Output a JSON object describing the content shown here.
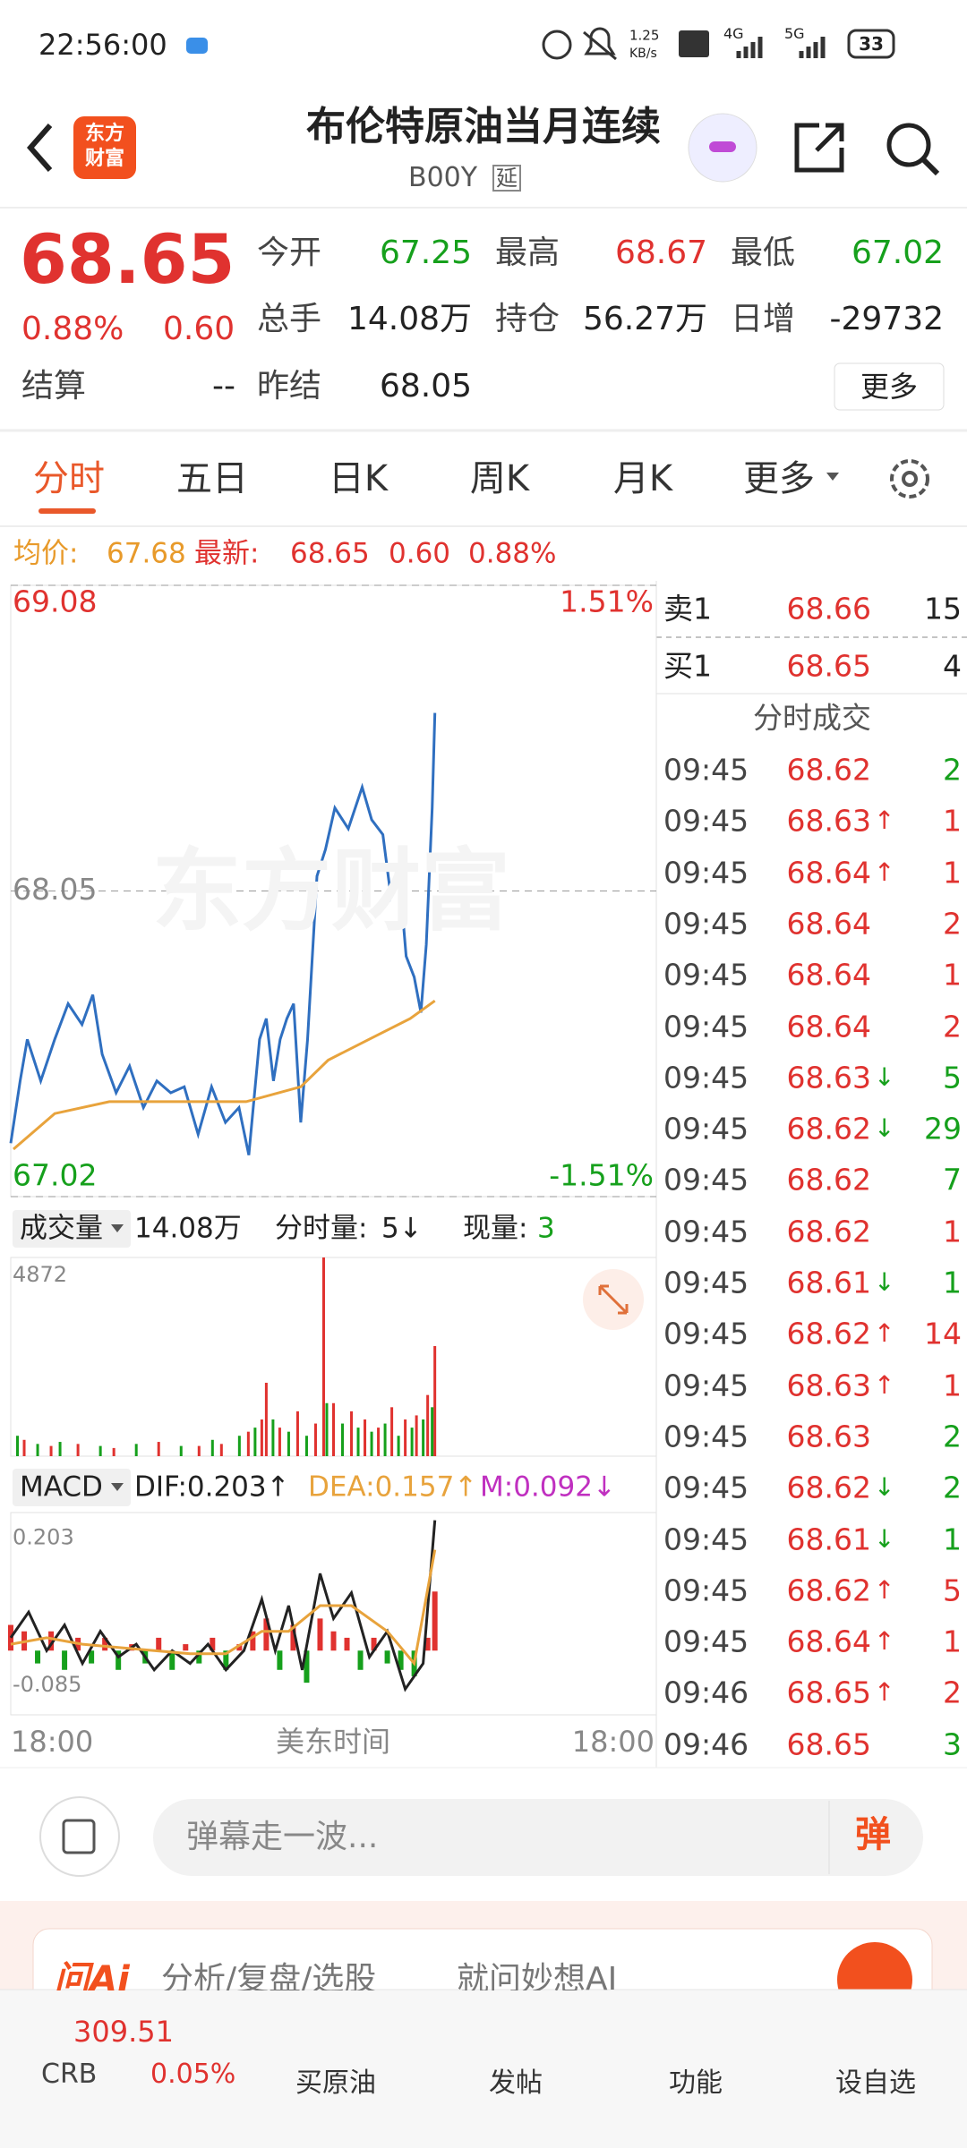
{
  "status_bar": {
    "time": "22:56:00",
    "net_speed": "1.25",
    "net_unit": "KB/s",
    "sim1": "4G",
    "sim2": "5G",
    "battery": "33"
  },
  "header": {
    "logo": [
      "东方",
      "财富"
    ],
    "title": "布伦特原油当月连续",
    "code": "B00Y",
    "delay": "延"
  },
  "quote": {
    "price": "68.65",
    "change_pct": "0.88%",
    "change": "0.60",
    "settle_label": "结算",
    "settle": "--",
    "more": "更多",
    "fields": [
      {
        "label": "今开",
        "value": "67.25",
        "color": "#16a01c"
      },
      {
        "label": "最高",
        "value": "68.67",
        "color": "#e0322f"
      },
      {
        "label": "最低",
        "value": "67.02",
        "color": "#16a01c"
      },
      {
        "label": "总手",
        "value": "14.08万",
        "color": "#222222"
      },
      {
        "label": "持仓",
        "value": "56.27万",
        "color": "#222222"
      },
      {
        "label": "日增",
        "value": "-29732",
        "color": "#222222"
      },
      {
        "label": "昨结",
        "value": "68.05",
        "color": "#222222"
      }
    ]
  },
  "tabs": [
    "分时",
    "五日",
    "日K",
    "周K",
    "月K",
    "更多"
  ],
  "active_tab": 0,
  "info_bar": {
    "avg_label": "均价:",
    "avg": "67.68",
    "last_label": "最新:",
    "last": "68.65",
    "change": "0.60",
    "change_pct": "0.88%"
  },
  "watermark": "东方财富",
  "volume_header": {
    "label": "成交量",
    "total": "14.08万",
    "tick_label": "分时量:",
    "tick": "5↓",
    "current_label": "现量:",
    "current": "3"
  },
  "macd_header": {
    "label": "MACD",
    "dif": "DIF:0.203↑",
    "dea": "DEA:0.157↑",
    "m": "M:0.092↓"
  },
  "time_axis": {
    "start": "18:00",
    "label": "美东时间",
    "end": "18:00"
  },
  "chart_data": [
    {
      "type": "line",
      "xlim": [
        0,
        1440
      ],
      "ylim": [
        67.02,
        69.08
      ],
      "yticks": [
        69.08,
        68.05,
        67.02
      ],
      "ytick_colors": [
        "#e0322f",
        "#888888",
        "#16a01c"
      ],
      "grid": true,
      "y2lim": [
        -1.51,
        1.51
      ],
      "y2ticks": [
        {
          "value": 1.51,
          "label": "1.51%"
        },
        {
          "value": -1.51,
          "label": "-1.51%"
        }
      ],
      "y2tick_colors": [
        "#e0322f",
        "#16a01c"
      ],
      "series": [
        {
          "color": "#2f6fc0",
          "x": [
            0,
            21,
            37,
            67,
            98,
            128,
            159,
            183,
            204,
            235,
            265,
            296,
            326,
            357,
            387,
            418,
            448,
            479,
            509,
            531,
            555,
            570,
            586,
            601,
            616,
            631,
            647,
            662,
            683,
            702,
            723,
            753,
            784,
            805,
            830,
            848,
            867,
            882,
            900,
            915,
            927,
            940,
            946
          ],
          "values": [
            67.2,
            67.41,
            67.55,
            67.41,
            67.55,
            67.67,
            67.6,
            67.7,
            67.5,
            67.37,
            67.46,
            67.32,
            67.41,
            67.37,
            67.39,
            67.23,
            67.39,
            67.27,
            67.32,
            67.16,
            67.55,
            67.62,
            67.41,
            67.55,
            67.62,
            67.67,
            67.27,
            67.55,
            68.1,
            68.19,
            68.33,
            68.26,
            68.4,
            68.29,
            68.24,
            68.03,
            68.1,
            67.83,
            67.76,
            67.64,
            67.87,
            68.33,
            68.65
          ]
        },
        {
          "color": "#e8a33c",
          "x": [
            6,
            98,
            220,
            372,
            525,
            647,
            708,
            799,
            891,
            946
          ],
          "values": [
            67.18,
            67.3,
            67.34,
            67.34,
            67.34,
            67.39,
            67.48,
            67.55,
            67.62,
            67.68
          ]
        }
      ]
    },
    {
      "type": "bar",
      "xlim": [
        0,
        1440
      ],
      "ylim": [
        0,
        4872
      ],
      "yticks": [
        4872
      ],
      "ytick_colors": [
        "#888888"
      ],
      "grid": false,
      "series": [
        {
          "color": "#e0322f",
          "x": [
            30,
            90,
            150,
            230,
            330,
            420,
            470,
            530,
            560,
            570,
            600,
            640,
            680,
            698,
            720,
            760,
            790,
            820,
            850,
            880,
            905,
            930,
            946
          ],
          "values": [
            400,
            250,
            300,
            200,
            350,
            250,
            300,
            600,
            900,
            1800,
            700,
            1100,
            800,
            4872,
            1300,
            1100,
            900,
            700,
            1200,
            900,
            1000,
            1500,
            2700
          ]
        },
        {
          "color": "#16a01c",
          "x": [
            15,
            60,
            110,
            200,
            280,
            380,
            450,
            510,
            545,
            585,
            620,
            660,
            705,
            740,
            775,
            805,
            835,
            865,
            895,
            920,
            940
          ],
          "values": [
            500,
            300,
            350,
            250,
            300,
            250,
            400,
            500,
            700,
            900,
            600,
            500,
            1300,
            800,
            700,
            600,
            800,
            500,
            700,
            900,
            1200
          ]
        }
      ]
    },
    {
      "type": "macd",
      "xlim": [
        0,
        1440
      ],
      "ylim": [
        -0.1,
        0.215
      ],
      "yticks": [
        0.203,
        -0.085
      ],
      "ytick_colors": [
        "#888888",
        "#888888"
      ],
      "grid": false,
      "series": [
        {
          "color": "#222222",
          "x": [
            0,
            40,
            80,
            120,
            160,
            200,
            240,
            280,
            320,
            360,
            400,
            440,
            480,
            520,
            560,
            590,
            620,
            650,
            690,
            720,
            760,
            800,
            840,
            880,
            920,
            946
          ],
          "values": [
            0.02,
            0.06,
            0,
            0.04,
            -0.02,
            0.03,
            -0.01,
            0.01,
            -0.03,
            0,
            -0.02,
            0.01,
            -0.03,
            0,
            0.08,
            0,
            0.07,
            -0.03,
            0.12,
            0.05,
            0.09,
            -0.01,
            0.03,
            -0.06,
            -0.02,
            0.203
          ]
        },
        {
          "color": "#e8a33c",
          "x": [
            0,
            80,
            160,
            240,
            320,
            400,
            480,
            560,
            620,
            690,
            760,
            840,
            900,
            946
          ],
          "values": [
            0.01,
            0.02,
            0.01,
            0.005,
            0,
            -0.005,
            -0.005,
            0.03,
            0.03,
            0.07,
            0.07,
            0.03,
            -0.02,
            0.157
          ]
        }
      ],
      "bars": {
        "up_color": "#e0322f",
        "down_color": "#16a01c",
        "x": [
          0,
          30,
          60,
          90,
          120,
          150,
          180,
          210,
          240,
          270,
          300,
          330,
          360,
          390,
          420,
          450,
          480,
          510,
          540,
          570,
          600,
          630,
          660,
          690,
          720,
          750,
          780,
          810,
          840,
          870,
          900,
          930,
          946
        ],
        "values": [
          0.04,
          0.03,
          -0.02,
          0.03,
          -0.03,
          0.02,
          -0.02,
          0.02,
          -0.03,
          0.01,
          -0.02,
          0.02,
          -0.03,
          0.01,
          -0.02,
          0.02,
          -0.03,
          0.01,
          0.03,
          0.05,
          -0.03,
          0.04,
          -0.05,
          0.05,
          0.03,
          0.02,
          -0.03,
          0.02,
          -0.02,
          -0.03,
          -0.04,
          0.02,
          0.092
        ]
      }
    }
  ],
  "order_book": {
    "ask_label": "卖1",
    "ask_price": "68.66",
    "ask_volume": "15",
    "bid_label": "买1",
    "bid_price": "68.65",
    "bid_volume": "4"
  },
  "trades_title": "分时成交",
  "trades": [
    {
      "time": "09:45",
      "price": "68.62",
      "volume": "2",
      "volume_color": "#16a01c"
    },
    {
      "time": "09:45",
      "price": "68.63",
      "dir": "↑",
      "volume": "1",
      "volume_color": "#e0322f"
    },
    {
      "time": "09:45",
      "price": "68.64",
      "dir": "↑",
      "volume": "1",
      "volume_color": "#e0322f"
    },
    {
      "time": "09:45",
      "price": "68.64",
      "volume": "2",
      "volume_color": "#e0322f"
    },
    {
      "time": "09:45",
      "price": "68.64",
      "volume": "1",
      "volume_color": "#e0322f"
    },
    {
      "time": "09:45",
      "price": "68.64",
      "volume": "2",
      "volume_color": "#e0322f"
    },
    {
      "time": "09:45",
      "price": "68.63",
      "dir": "↓",
      "volume": "5",
      "volume_color": "#16a01c"
    },
    {
      "time": "09:45",
      "price": "68.62",
      "dir": "↓",
      "volume": "29",
      "volume_color": "#16a01c"
    },
    {
      "time": "09:45",
      "price": "68.62",
      "volume": "7",
      "volume_color": "#16a01c"
    },
    {
      "time": "09:45",
      "price": "68.62",
      "volume": "1",
      "volume_color": "#e0322f"
    },
    {
      "time": "09:45",
      "price": "68.61",
      "dir": "↓",
      "volume": "1",
      "volume_color": "#16a01c"
    },
    {
      "time": "09:45",
      "price": "68.62",
      "dir": "↑",
      "volume": "14",
      "volume_color": "#e0322f"
    },
    {
      "time": "09:45",
      "price": "68.63",
      "dir": "↑",
      "volume": "1",
      "volume_color": "#e0322f"
    },
    {
      "time": "09:45",
      "price": "68.63",
      "volume": "2",
      "volume_color": "#16a01c"
    },
    {
      "time": "09:45",
      "price": "68.62",
      "dir": "↓",
      "volume": "2",
      "volume_color": "#16a01c"
    },
    {
      "time": "09:45",
      "price": "68.61",
      "dir": "↓",
      "volume": "1",
      "volume_color": "#16a01c"
    },
    {
      "time": "09:45",
      "price": "68.62",
      "dir": "↑",
      "volume": "5",
      "volume_color": "#e0322f"
    },
    {
      "time": "09:45",
      "price": "68.64",
      "dir": "↑",
      "volume": "1",
      "volume_color": "#e0322f"
    },
    {
      "time": "09:46",
      "price": "68.65",
      "dir": "↑",
      "volume": "2",
      "volume_color": "#e0322f"
    },
    {
      "time": "09:46",
      "price": "68.65",
      "volume": "3",
      "volume_color": "#16a01c"
    }
  ],
  "comment": {
    "placeholder": "弹幕走一波...",
    "button": "弹"
  },
  "ai_banner": {
    "logo": "问Ai",
    "text": "分析/复盘/选股",
    "text2": "就问妙想AI"
  },
  "bottom_nav": {
    "index_name": "CRB",
    "index_value": "309.51",
    "index_change": "0.05%",
    "items": [
      "买原油",
      "发帖",
      "功能",
      "设自选"
    ]
  }
}
